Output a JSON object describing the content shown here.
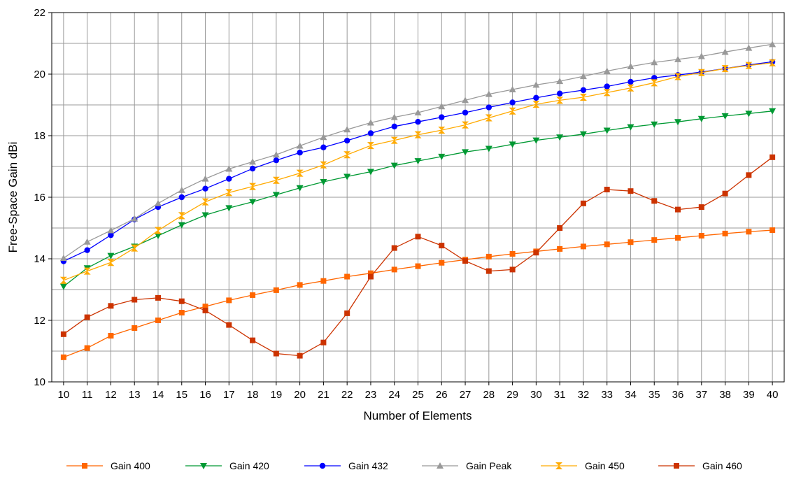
{
  "chart_data": {
    "type": "line",
    "title": "",
    "xlabel": "Number of Elements",
    "ylabel": "Free-Space Gain dBi",
    "xlim": [
      10,
      40
    ],
    "ylim": [
      10,
      22
    ],
    "grid": true,
    "legend_position": "bottom",
    "x": [
      10,
      11,
      12,
      13,
      14,
      15,
      16,
      17,
      18,
      19,
      20,
      21,
      22,
      23,
      24,
      25,
      26,
      27,
      28,
      29,
      30,
      31,
      32,
      33,
      34,
      35,
      36,
      37,
      38,
      39,
      40
    ],
    "x_tick_labels": [
      "10",
      "11",
      "12",
      "13",
      "14",
      "15",
      "16",
      "17",
      "18",
      "19",
      "20",
      "21",
      "22",
      "23",
      "24",
      "25",
      "26",
      "27",
      "28",
      "29",
      "30",
      "31",
      "32",
      "33",
      "34",
      "35",
      "36",
      "37",
      "38",
      "39",
      "40"
    ],
    "y_tick_labels": [
      "10",
      "12",
      "14",
      "16",
      "18",
      "20",
      "22"
    ],
    "y_ticks": [
      10,
      12,
      14,
      16,
      18,
      20,
      22
    ],
    "series": [
      {
        "name": "Gain 400",
        "color": "#ff6600",
        "marker": "square",
        "values": [
          10.8,
          11.1,
          11.5,
          11.75,
          12.0,
          12.25,
          12.45,
          12.65,
          12.82,
          12.98,
          13.15,
          13.28,
          13.42,
          13.53,
          13.65,
          13.76,
          13.87,
          13.97,
          14.07,
          14.16,
          14.24,
          14.32,
          14.4,
          14.47,
          14.54,
          14.61,
          14.68,
          14.75,
          14.82,
          14.88,
          14.93
        ]
      },
      {
        "name": "Gain 420",
        "color": "#009933",
        "marker": "triangle-down",
        "values": [
          13.1,
          13.7,
          14.1,
          14.4,
          14.75,
          15.1,
          15.42,
          15.65,
          15.85,
          16.08,
          16.3,
          16.5,
          16.67,
          16.83,
          17.03,
          17.18,
          17.32,
          17.47,
          17.58,
          17.72,
          17.85,
          17.95,
          18.05,
          18.17,
          18.28,
          18.37,
          18.45,
          18.55,
          18.64,
          18.72,
          18.8
        ]
      },
      {
        "name": "Gain 432",
        "color": "#0000ff",
        "marker": "circle",
        "values": [
          13.92,
          14.28,
          14.77,
          15.28,
          15.68,
          16.0,
          16.28,
          16.6,
          16.93,
          17.2,
          17.45,
          17.62,
          17.84,
          18.08,
          18.3,
          18.45,
          18.6,
          18.75,
          18.92,
          19.08,
          19.23,
          19.37,
          19.48,
          19.6,
          19.75,
          19.88,
          19.97,
          20.07,
          20.18,
          20.3,
          20.4
        ]
      },
      {
        "name": "Gain Peak",
        "color": "#999999",
        "marker": "triangle-up",
        "values": [
          14.02,
          14.55,
          14.92,
          15.3,
          15.8,
          16.23,
          16.6,
          16.92,
          17.15,
          17.38,
          17.67,
          17.95,
          18.2,
          18.42,
          18.6,
          18.75,
          18.95,
          19.15,
          19.35,
          19.5,
          19.65,
          19.77,
          19.93,
          20.1,
          20.25,
          20.38,
          20.48,
          20.58,
          20.72,
          20.85,
          20.97
        ]
      },
      {
        "name": "Gain 450",
        "color": "#ffaa00",
        "marker": "hourglass",
        "values": [
          13.3,
          13.6,
          13.88,
          14.35,
          14.92,
          15.4,
          15.85,
          16.15,
          16.35,
          16.55,
          16.78,
          17.05,
          17.38,
          17.68,
          17.85,
          18.03,
          18.18,
          18.35,
          18.58,
          18.8,
          19.02,
          19.15,
          19.25,
          19.4,
          19.55,
          19.72,
          19.92,
          20.05,
          20.18,
          20.28,
          20.37
        ]
      },
      {
        "name": "Gain 460",
        "color": "#cc3300",
        "marker": "square",
        "values": [
          11.55,
          12.1,
          12.47,
          12.67,
          12.73,
          12.62,
          12.32,
          11.85,
          11.35,
          10.92,
          10.85,
          11.28,
          12.23,
          13.42,
          14.35,
          14.72,
          14.43,
          13.93,
          13.6,
          13.65,
          14.2,
          15.0,
          15.8,
          16.25,
          16.2,
          15.88,
          15.6,
          15.68,
          16.12,
          16.72,
          17.3
        ]
      }
    ]
  }
}
